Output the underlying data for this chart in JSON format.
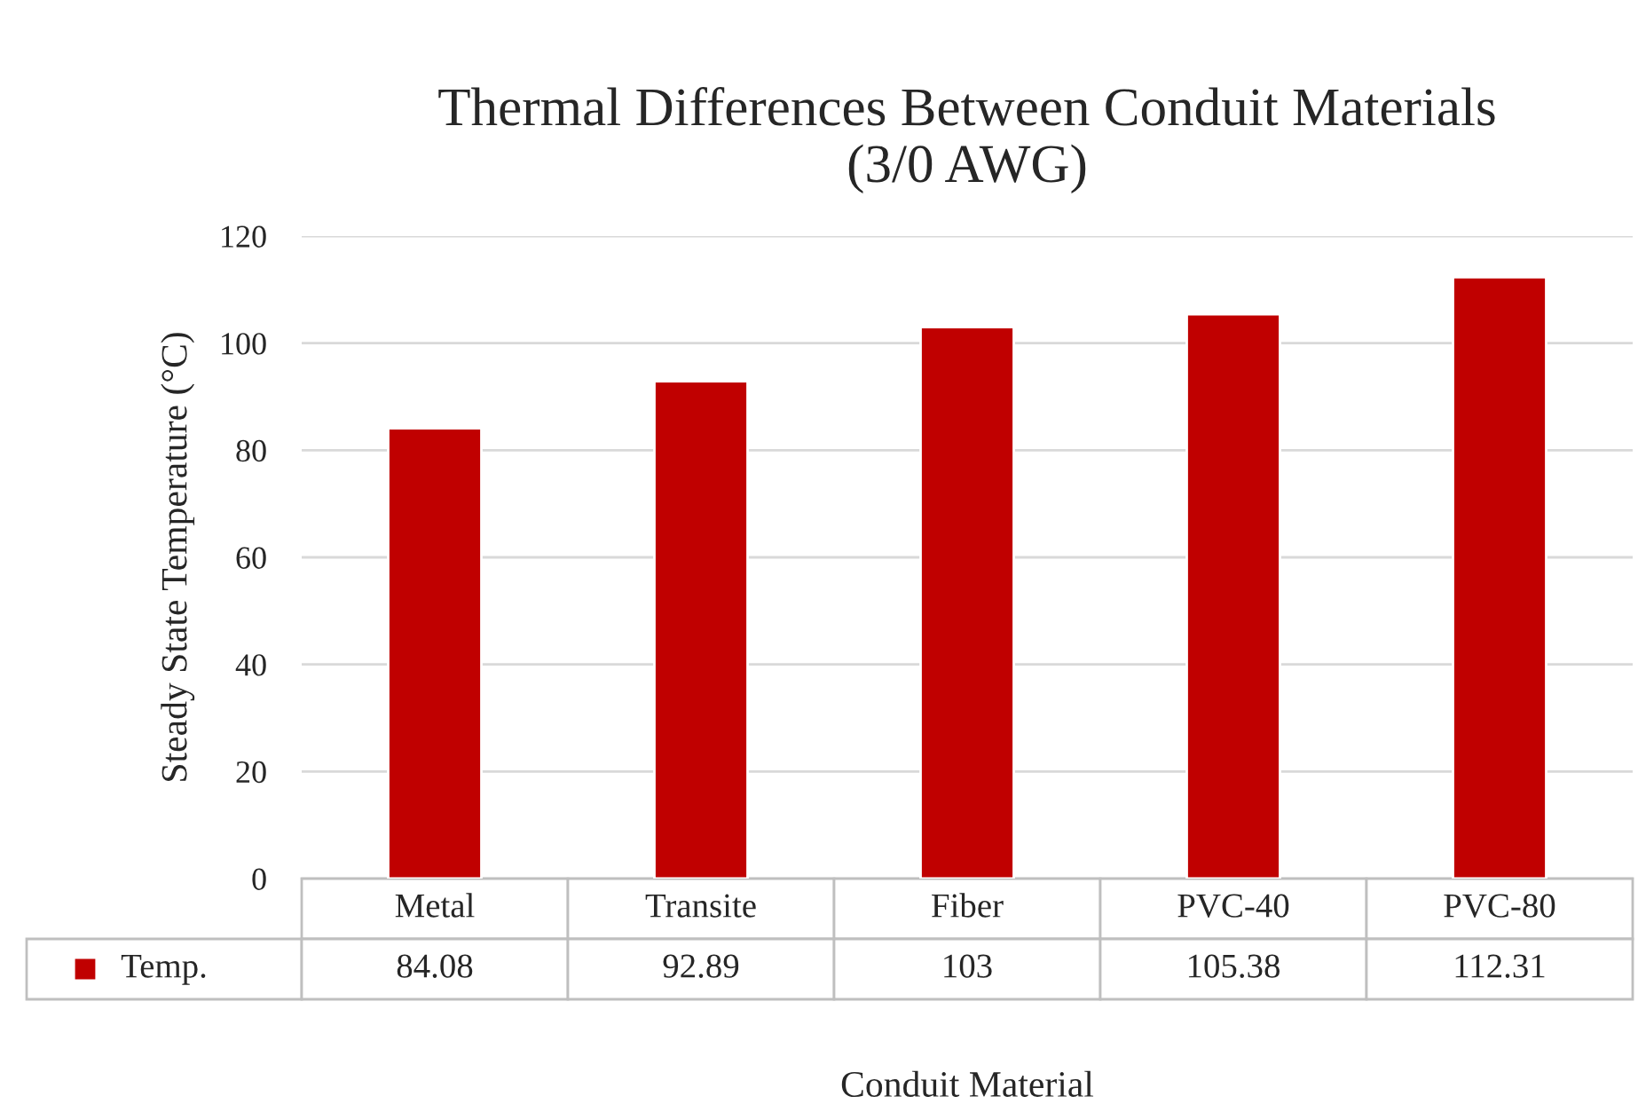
{
  "chart_data": {
    "type": "bar",
    "title": "Thermal Differences Between Conduit Materials\n(3/0 AWG)",
    "xlabel": "Conduit Material",
    "ylabel": "Steady State Temperature (°C)",
    "categories": [
      "Metal",
      "Transite",
      "Fiber",
      "PVC-40",
      "PVC-80"
    ],
    "series": [
      {
        "name": "Temp.",
        "color": "#c00000",
        "values": [
          84.08,
          92.89,
          103,
          105.38,
          112.31
        ]
      }
    ],
    "ylim": [
      0,
      120
    ],
    "yticks": [
      0,
      20,
      40,
      60,
      80,
      100,
      120
    ],
    "grid": "y",
    "data_labels": true,
    "legend": "bottom left"
  }
}
